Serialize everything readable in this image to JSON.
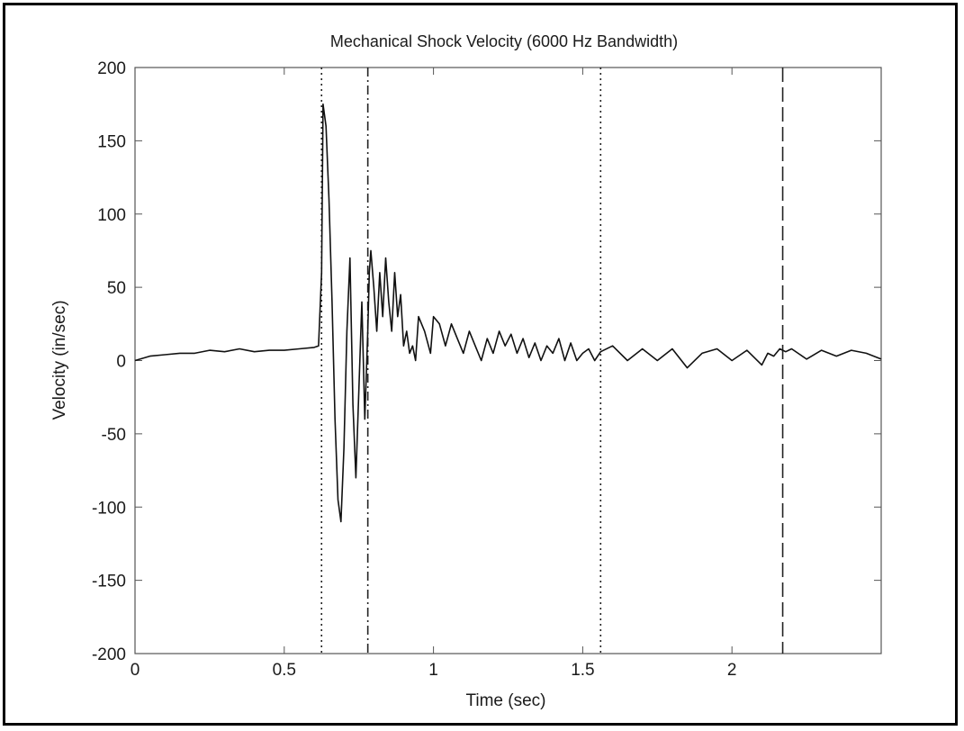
{
  "chart_data": {
    "type": "line",
    "title": "Mechanical Shock Velocity (6000 Hz Bandwidth)",
    "xlabel": "Time (sec)",
    "ylabel": "Velocity (in/sec)",
    "xlim": [
      0,
      2.5
    ],
    "ylim": [
      -200,
      200
    ],
    "x_ticks": [
      0,
      0.5,
      1,
      1.5,
      2
    ],
    "x_tick_labels": [
      "0",
      "0.5",
      "1",
      "1.5",
      "2"
    ],
    "y_ticks": [
      200,
      150,
      100,
      50,
      0,
      -50,
      -100,
      -150,
      -200
    ],
    "y_tick_labels": [
      "200",
      "150",
      "100",
      "50",
      "0",
      "-50",
      "-100",
      "-150",
      "-200"
    ],
    "grid": false,
    "series": [
      {
        "color": "#111111",
        "x": [
          0,
          0.05,
          0.1,
          0.15,
          0.2,
          0.25,
          0.3,
          0.35,
          0.4,
          0.45,
          0.5,
          0.55,
          0.6,
          0.615,
          0.625,
          0.63,
          0.64,
          0.65,
          0.66,
          0.67,
          0.68,
          0.69,
          0.7,
          0.71,
          0.72,
          0.73,
          0.74,
          0.75,
          0.76,
          0.77,
          0.78,
          0.785,
          0.79,
          0.8,
          0.81,
          0.82,
          0.83,
          0.84,
          0.85,
          0.86,
          0.87,
          0.88,
          0.89,
          0.9,
          0.91,
          0.92,
          0.93,
          0.94,
          0.95,
          0.97,
          0.99,
          1.0,
          1.02,
          1.04,
          1.06,
          1.08,
          1.1,
          1.12,
          1.14,
          1.16,
          1.18,
          1.2,
          1.22,
          1.24,
          1.26,
          1.28,
          1.3,
          1.32,
          1.34,
          1.36,
          1.38,
          1.4,
          1.42,
          1.44,
          1.46,
          1.48,
          1.5,
          1.52,
          1.54,
          1.56,
          1.6,
          1.65,
          1.7,
          1.75,
          1.8,
          1.85,
          1.9,
          1.95,
          2.0,
          2.05,
          2.1,
          2.12,
          2.14,
          2.16,
          2.18,
          2.2,
          2.25,
          2.3,
          2.35,
          2.4,
          2.45,
          2.5
        ],
        "y": [
          0,
          3,
          4,
          5,
          5,
          7,
          6,
          8,
          6,
          7,
          7,
          8,
          9,
          10,
          60,
          175,
          160,
          110,
          40,
          -40,
          -95,
          -110,
          -60,
          20,
          70,
          -30,
          -80,
          -20,
          40,
          -40,
          20,
          60,
          75,
          50,
          20,
          60,
          30,
          70,
          40,
          20,
          60,
          30,
          45,
          10,
          20,
          5,
          10,
          0,
          30,
          20,
          5,
          30,
          25,
          10,
          25,
          15,
          5,
          20,
          10,
          0,
          15,
          5,
          20,
          10,
          18,
          5,
          15,
          2,
          12,
          0,
          10,
          5,
          15,
          0,
          12,
          0,
          5,
          8,
          0,
          6,
          10,
          0,
          8,
          0,
          8,
          -5,
          5,
          8,
          0,
          7,
          -3,
          5,
          3,
          8,
          6,
          8,
          1,
          7,
          3,
          7,
          5,
          1
        ]
      }
    ],
    "vertical_markers": [
      {
        "x": 0.625,
        "style": "dotted"
      },
      {
        "x": 0.78,
        "style": "dashdot"
      },
      {
        "x": 1.56,
        "style": "dotted"
      },
      {
        "x": 2.17,
        "style": "dashed"
      }
    ]
  }
}
